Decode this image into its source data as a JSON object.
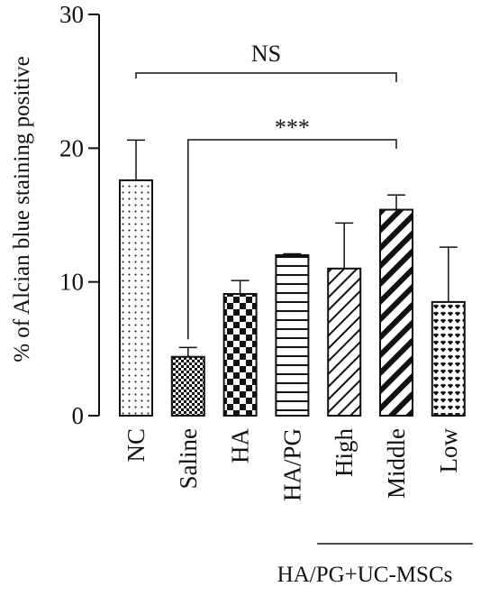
{
  "chart_data": {
    "type": "bar",
    "categories": [
      "NC",
      "Saline",
      "HA",
      "HA/PG",
      "High",
      "Middle",
      "Low"
    ],
    "values": [
      17.6,
      4.4,
      9.1,
      12.0,
      11.0,
      15.4,
      8.5
    ],
    "error_upper": [
      20.6,
      5.1,
      10.1,
      12.1,
      14.4,
      16.5,
      12.6
    ],
    "patterns": [
      "dots",
      "check-small",
      "check-large",
      "horizontal-lines",
      "diagonal-thin",
      "diagonal-thick",
      "hearts"
    ],
    "ylabel": "% of Alcian blue staining positive",
    "xlabel": "",
    "ylim": [
      0,
      30
    ],
    "yticks": [
      0,
      10,
      20,
      30
    ],
    "group_label": "HA/PG+UC-MSCs",
    "group_categories": [
      "High",
      "Middle",
      "Low"
    ],
    "significance": [
      {
        "from": "NC",
        "to": "Middle",
        "label": "NS"
      },
      {
        "from": "Saline",
        "to": "Middle",
        "label": "***"
      }
    ],
    "grid": false,
    "bar_color": "#111111"
  }
}
